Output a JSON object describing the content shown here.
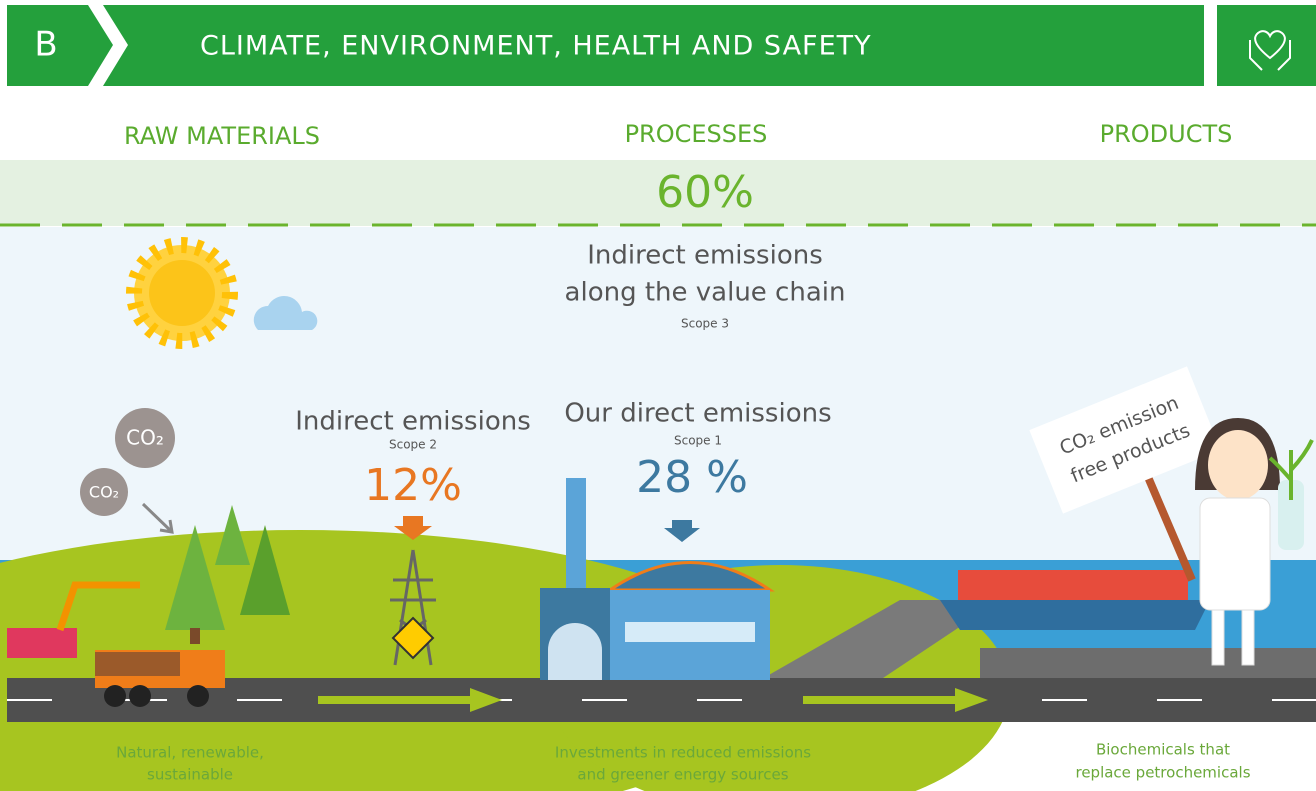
{
  "header": {
    "letter": "B",
    "title": "CLIMATE, ENVIRONMENT, HEALTH AND SAFETY"
  },
  "stages": [
    "RAW MATERIALS",
    "PROCESSES",
    "PRODUCTS"
  ],
  "scope3": {
    "share": "60%",
    "title_lines": [
      "Indirect emissions",
      "along the value chain"
    ],
    "scope": "Scope 3"
  },
  "scope2": {
    "title": "Indirect emissions",
    "scope": "Scope 2",
    "share": "12%"
  },
  "scope1": {
    "title": "Our direct emissions",
    "scope": "Scope 1",
    "share": "28 %"
  },
  "co2_labels": [
    "CO₂",
    "CO₂"
  ],
  "sign": [
    "CO₂ emission",
    "free products"
  ],
  "captions": [
    [
      "Natural, renewable,",
      "sustainable"
    ],
    [
      "Investments in reduced emissions",
      "and greener energy sources"
    ],
    [
      "Biochemicals that",
      "replace petrochemicals"
    ]
  ]
}
